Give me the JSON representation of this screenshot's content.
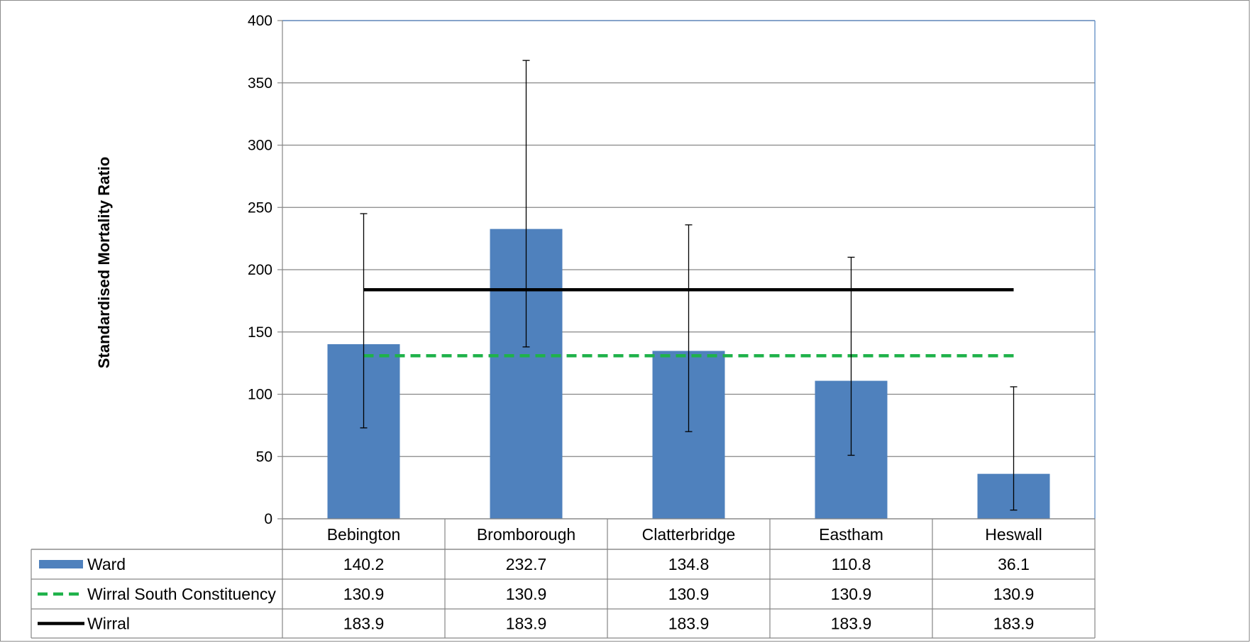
{
  "chart_data": {
    "type": "bar",
    "title": "",
    "xlabel": "",
    "ylabel": "Standardised Mortality Ratio",
    "ylim": [
      0,
      400
    ],
    "yticks": [
      0,
      50,
      100,
      150,
      200,
      250,
      300,
      350,
      400
    ],
    "ytick_labels": [
      "0",
      "50",
      "100",
      "150",
      "200",
      "250",
      "300",
      "350",
      "400"
    ],
    "grid": true,
    "legend": "data-table-left",
    "categories": [
      "Bebington",
      "Bromborough",
      "Clatterbridge",
      "Eastham",
      "Heswall"
    ],
    "series": [
      {
        "name": "Ward",
        "kind": "bar",
        "color": "#4f81bd",
        "values": [
          140.2,
          232.7,
          134.8,
          110.8,
          36.1
        ],
        "labels": [
          "140.2",
          "232.7",
          "134.8",
          "110.8",
          "36.1"
        ],
        "error_low": [
          73,
          138,
          70,
          51,
          7
        ],
        "error_high": [
          245,
          368,
          236,
          210,
          106
        ]
      },
      {
        "name": "Wirral South Constituency",
        "kind": "line-dashed",
        "color": "#1fb24a",
        "values": [
          130.9,
          130.9,
          130.9,
          130.9,
          130.9
        ],
        "labels": [
          "130.9",
          "130.9",
          "130.9",
          "130.9",
          "130.9"
        ]
      },
      {
        "name": "Wirral",
        "kind": "line",
        "color": "#000000",
        "values": [
          183.9,
          183.9,
          183.9,
          183.9,
          183.9
        ],
        "labels": [
          "183.9",
          "183.9",
          "183.9",
          "183.9",
          "183.9"
        ]
      }
    ]
  }
}
